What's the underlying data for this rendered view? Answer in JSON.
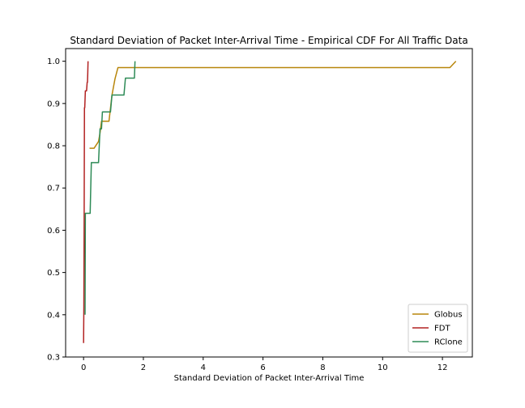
{
  "chart_data": {
    "type": "line",
    "title": "Standard Deviation of Packet Inter-Arrival Time - Empirical CDF For All Traffic Data",
    "xlabel": "Standard Deviation of Packet Inter-Arrival Time",
    "ylabel": "",
    "xlim": [
      -0.6,
      13.0
    ],
    "ylim": [
      0.3,
      1.03
    ],
    "xticks": [
      0,
      2,
      4,
      6,
      8,
      10,
      12
    ],
    "yticks": [
      0.3,
      0.4,
      0.5,
      0.6,
      0.7,
      0.8,
      0.9,
      1.0
    ],
    "xtick_labels": [
      "0",
      "2",
      "4",
      "6",
      "8",
      "10",
      "12"
    ],
    "ytick_labels": [
      "0.3",
      "0.4",
      "0.5",
      "0.6",
      "0.7",
      "0.8",
      "0.9",
      "1.0"
    ],
    "grid": false,
    "legend_position": "lower-right",
    "series": [
      {
        "name": "Globus",
        "color": "#b8860b",
        "x": [
          0.2,
          0.35,
          0.5,
          0.55,
          0.6,
          0.85,
          0.95,
          1.05,
          1.15,
          12.25,
          12.45
        ],
        "y": [
          0.794,
          0.794,
          0.81,
          0.83,
          0.858,
          0.858,
          0.92,
          0.958,
          0.985,
          0.985,
          1.0
        ]
      },
      {
        "name": "FDT",
        "color": "#b22222",
        "x": [
          0.0,
          0.01,
          0.02,
          0.03,
          0.04,
          0.06,
          0.08,
          0.1,
          0.12,
          0.13,
          0.14,
          0.15
        ],
        "y": [
          0.333,
          0.42,
          0.64,
          0.89,
          0.89,
          0.93,
          0.93,
          0.93,
          0.95,
          0.95,
          0.97,
          1.0
        ]
      },
      {
        "name": "RClone",
        "color": "#2e8b57",
        "x": [
          0.05,
          0.06,
          0.22,
          0.26,
          0.5,
          0.55,
          0.6,
          0.63,
          0.9,
          0.95,
          1.35,
          1.4,
          1.7,
          1.72
        ],
        "y": [
          0.4,
          0.64,
          0.64,
          0.76,
          0.76,
          0.84,
          0.84,
          0.88,
          0.88,
          0.92,
          0.92,
          0.96,
          0.96,
          1.0
        ]
      }
    ]
  }
}
